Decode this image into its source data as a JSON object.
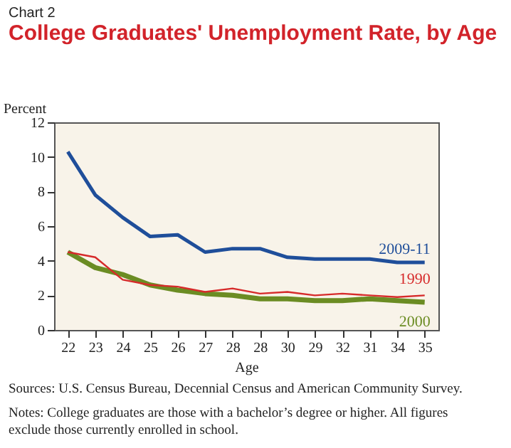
{
  "chart_data": {
    "type": "line",
    "title": "College Graduates' Unemployment Rate, by Age",
    "xlabel": "Age",
    "ylabel": "Percent",
    "annotations": [
      "Chart 2",
      "Sources: U.S. Census Bureau, Decennial Census and American Community Survey.",
      "Notes: College graduates are those with a bachelor’s degree or higher. All figures exclude those currently enrolled in school."
    ],
    "categories": [
      "22",
      "23",
      "24",
      "25",
      "26",
      "27",
      "28",
      "28",
      "30",
      "29",
      "32",
      "31",
      "34",
      "35"
    ],
    "series": [
      {
        "name": "2009-11",
        "color": "#1f4e9a",
        "values": [
          10.3,
          7.8,
          6.5,
          5.4,
          5.5,
          4.5,
          4.7,
          4.7,
          4.2,
          4.1,
          4.1,
          4.1,
          3.9,
          3.9
        ]
      },
      {
        "name": "1990",
        "color": "#d62a2a",
        "values": [
          4.5,
          4.2,
          2.9,
          2.6,
          2.5,
          2.2,
          2.4,
          2.1,
          2.2,
          2.0,
          2.1,
          2.0,
          1.9,
          2.0
        ]
      },
      {
        "name": "2000",
        "color": "#6b8c23",
        "values": [
          4.5,
          3.6,
          3.2,
          2.6,
          2.3,
          2.1,
          2.0,
          1.8,
          1.8,
          1.7,
          1.7,
          1.8,
          1.7,
          1.6
        ]
      }
    ],
    "ylim": [
      0,
      12
    ],
    "yticks": [
      0,
      2,
      4,
      6,
      8,
      10,
      12
    ],
    "grid": false,
    "legend": false,
    "marker": "none",
    "line_style": "solid"
  }
}
